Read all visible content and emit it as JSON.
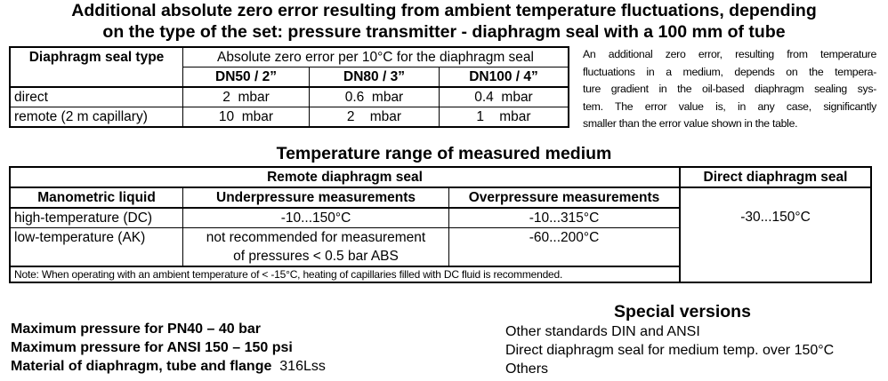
{
  "header": {
    "title_lines": [
      "Additional absolute zero error resulting from ambient temperature fluctuations, depending",
      "on the type of the set: pressure transmitter - diaphragm seal with a 100 mm of tube"
    ]
  },
  "table1": {
    "col_header": "Diaphragm seal type",
    "group_header": "Absolute zero error per 10°C for the diaphragm seal",
    "sizes": [
      "DN50 / 2”",
      "DN80 / 3”",
      "DN100 / 4”"
    ],
    "rows": [
      [
        "direct",
        "2  mbar",
        "0.6  mbar",
        "0.4  mbar"
      ],
      [
        "remote (2 m capillary)",
        "10  mbar",
        "2    mbar",
        "1    mbar"
      ]
    ]
  },
  "side_note": {
    "lines": [
      "An additional zero error, resulting from temperature",
      "fluctuations in a medium, depends on the tempera-",
      "ture gradient in the oil-based diaphragm sealing sys-",
      "tem. The error value is, in any case, significantly",
      "smaller than the error value shown in the table."
    ]
  },
  "section2": {
    "title": "Temperature range of measured medium"
  },
  "table2": {
    "remote_header": "Remote diaphragm seal",
    "direct_header": "Direct diaphragm seal",
    "headers": [
      "Manometric liquid",
      "Underpressure measurements",
      "Overpressure measurements"
    ],
    "rows": [
      [
        "high-temperature (DC)",
        "-10...150°C",
        "-10...315°C"
      ],
      [
        "low-temperature (AK)",
        "not recommended for measurement of pressures < 0.5 bar ABS",
        "-60...200°C"
      ]
    ],
    "direct_value": "-30...150°C",
    "note": "Note: When operating with an ambient temperature of < -15°C, heating of capillaries filled with DC fluid is recommended."
  },
  "specs": {
    "items": [
      "Maximum pressure for PN40 – 40 bar",
      "Maximum pressure for ANSI 150 – 150 psi",
      "Material of diaphragm, tube and flange"
    ],
    "material_value": "316Lss"
  },
  "special_versions": {
    "title": "Special versions",
    "items": [
      "Other standards DIN and ANSI",
      "Direct diaphragm seal for medium temp. over 150°C",
      "Others"
    ]
  }
}
